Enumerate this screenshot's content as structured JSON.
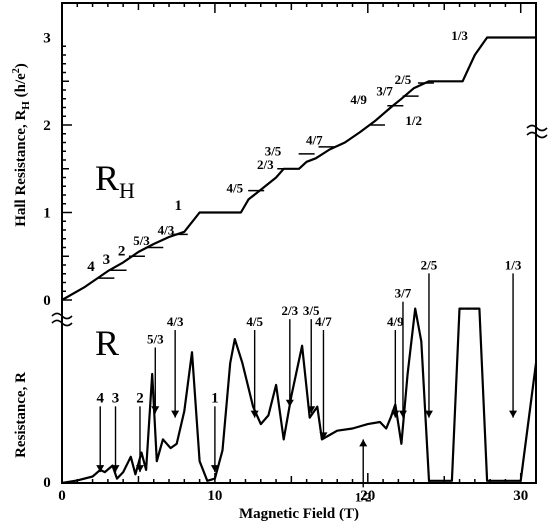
{
  "chart_data": {
    "type": "line",
    "xlabel": "Magnetic Field (T)",
    "ylabel_hall": "Hall Resistance, R",
    "ylabel_hall_sub": "H",
    "ylabel_hall_unit_open": " (h/e",
    "ylabel_hall_unit_sup": "2",
    "ylabel_hall_unit_close": ")",
    "ylabel_r": "Resistance, R",
    "xlim": [
      0,
      31
    ],
    "ylim_hall": [
      0,
      3.2
    ],
    "x_ticks": [
      "0",
      "10",
      "20",
      "30"
    ],
    "y_ticks_hall": [
      "0",
      "1",
      "2",
      "3"
    ],
    "y_zero_r": "0",
    "label_RH_main": "R",
    "label_RH_sub": "H",
    "label_R": "R",
    "series": [
      {
        "name": "R_H",
        "points": [
          [
            0,
            0
          ],
          [
            1.5,
            0.15
          ],
          [
            3,
            0.33
          ],
          [
            4,
            0.43
          ],
          [
            5,
            0.55
          ],
          [
            6,
            0.64
          ],
          [
            7,
            0.72
          ],
          [
            8,
            0.78
          ],
          [
            9,
            1.0
          ],
          [
            11.7,
            1.0
          ],
          [
            12.2,
            1.15
          ],
          [
            13,
            1.26
          ],
          [
            14,
            1.4
          ],
          [
            14.5,
            1.5
          ],
          [
            15.5,
            1.5
          ],
          [
            16,
            1.58
          ],
          [
            16.6,
            1.62
          ],
          [
            17.5,
            1.72
          ],
          [
            18.5,
            1.8
          ],
          [
            19.5,
            1.92
          ],
          [
            20.5,
            2.05
          ],
          [
            21.5,
            2.2
          ],
          [
            22.2,
            2.3
          ],
          [
            23,
            2.42
          ],
          [
            24,
            2.5
          ],
          [
            26.2,
            2.5
          ],
          [
            27,
            2.8
          ],
          [
            27.8,
            3.0
          ],
          [
            31,
            3.0
          ]
        ]
      },
      {
        "name": "R",
        "points": [
          [
            0,
            0
          ],
          [
            1,
            0.012
          ],
          [
            2,
            0.03
          ],
          [
            2.5,
            0.06
          ],
          [
            2.8,
            0.05
          ],
          [
            3.3,
            0.08
          ],
          [
            3.6,
            0.02
          ],
          [
            4,
            0.05
          ],
          [
            4.5,
            0.12
          ],
          [
            4.8,
            0.04
          ],
          [
            5.2,
            0.14
          ],
          [
            5.5,
            0.06
          ],
          [
            5.9,
            0.5
          ],
          [
            6.2,
            0.1
          ],
          [
            6.6,
            0.2
          ],
          [
            7.1,
            0.16
          ],
          [
            7.5,
            0.18
          ],
          [
            8,
            0.33
          ],
          [
            8.5,
            0.6
          ],
          [
            9,
            0.1
          ],
          [
            9.5,
            0.01
          ],
          [
            10,
            0.02
          ],
          [
            10.5,
            0.15
          ],
          [
            11,
            0.55
          ],
          [
            11.3,
            0.66
          ],
          [
            11.8,
            0.55
          ],
          [
            12.5,
            0.35
          ],
          [
            13,
            0.27
          ],
          [
            13.5,
            0.31
          ],
          [
            14,
            0.45
          ],
          [
            14.5,
            0.2
          ],
          [
            15,
            0.4
          ],
          [
            15.7,
            0.63
          ],
          [
            16.2,
            0.3
          ],
          [
            16.7,
            0.35
          ],
          [
            17,
            0.2
          ],
          [
            17.5,
            0.22
          ],
          [
            18,
            0.24
          ],
          [
            19,
            0.25
          ],
          [
            20,
            0.27
          ],
          [
            20.8,
            0.28
          ],
          [
            21.2,
            0.25
          ],
          [
            21.5,
            0.3
          ],
          [
            21.8,
            0.36
          ],
          [
            22.2,
            0.18
          ],
          [
            22.6,
            0.5
          ],
          [
            23.1,
            0.8
          ],
          [
            23.5,
            0.65
          ],
          [
            24,
            0.01
          ],
          [
            25.5,
            0.01
          ],
          [
            26,
            0.8
          ],
          [
            27.3,
            0.8
          ],
          [
            27.8,
            0.01
          ],
          [
            30,
            0.01
          ],
          [
            31,
            0.55
          ]
        ]
      }
    ],
    "hall_plateau_labels": [
      {
        "text": "4",
        "x": 1.9,
        "y": 0.33
      },
      {
        "text": "3",
        "x": 2.9,
        "y": 0.41
      },
      {
        "text": "2",
        "x": 3.9,
        "y": 0.51
      },
      {
        "text": "5/3",
        "x": 5.2,
        "y": 0.63
      },
      {
        "text": "4/3",
        "x": 6.8,
        "y": 0.75
      },
      {
        "text": "1",
        "x": 7.6,
        "y": 1.03
      },
      {
        "text": "4/5",
        "x": 11.3,
        "y": 1.23
      },
      {
        "text": "2/3",
        "x": 13.3,
        "y": 1.5
      },
      {
        "text": "3/5",
        "x": 13.8,
        "y": 1.65
      },
      {
        "text": "4/7",
        "x": 16.5,
        "y": 1.78
      },
      {
        "text": "4/9",
        "x": 19.4,
        "y": 2.24
      },
      {
        "text": "3/7",
        "x": 21.1,
        "y": 2.34
      },
      {
        "text": "2/5",
        "x": 22.3,
        "y": 2.47
      },
      {
        "text": "1/2",
        "x": 23.0,
        "y": 2.0
      },
      {
        "text": "1/3",
        "x": 26.0,
        "y": 2.97
      }
    ],
    "hall_dashes": [
      {
        "x": 2.9,
        "y": 0.25
      },
      {
        "x": 3.7,
        "y": 0.34
      },
      {
        "x": 4.9,
        "y": 0.5
      },
      {
        "x": 6.1,
        "y": 0.6
      },
      {
        "x": 7.7,
        "y": 0.75
      },
      {
        "x": 12.7,
        "y": 1.25
      },
      {
        "x": 14.6,
        "y": 1.5
      },
      {
        "x": 16.0,
        "y": 1.67
      },
      {
        "x": 17.3,
        "y": 1.75
      },
      {
        "x": 20.6,
        "y": 2.0
      },
      {
        "x": 21.8,
        "y": 2.22
      },
      {
        "x": 22.8,
        "y": 2.33
      },
      {
        "x": 23.8,
        "y": 2.48
      }
    ],
    "r_arrows": [
      {
        "text": "4",
        "x": 2.5,
        "label_y": 0.37,
        "tip": 0.05,
        "dir": "down"
      },
      {
        "text": "3",
        "x": 3.5,
        "label_y": 0.37,
        "tip": 0.05,
        "dir": "down"
      },
      {
        "text": "2",
        "x": 5.1,
        "label_y": 0.37,
        "tip": 0.05,
        "dir": "down"
      },
      {
        "text": "5/3",
        "x": 6.1,
        "label_y": 0.64,
        "tip": 0.32,
        "dir": "down"
      },
      {
        "text": "4/3",
        "x": 7.4,
        "label_y": 0.72,
        "tip": 0.3,
        "dir": "down"
      },
      {
        "text": "1",
        "x": 10.0,
        "label_y": 0.37,
        "tip": 0.05,
        "dir": "down"
      },
      {
        "text": "4/5",
        "x": 12.6,
        "label_y": 0.72,
        "tip": 0.3,
        "dir": "down"
      },
      {
        "text": "2/3",
        "x": 14.9,
        "label_y": 0.77,
        "tip": 0.35,
        "dir": "down"
      },
      {
        "text": "3/5",
        "x": 16.3,
        "label_y": 0.77,
        "tip": 0.32,
        "dir": "down"
      },
      {
        "text": "4/7",
        "x": 17.1,
        "label_y": 0.72,
        "tip": 0.2,
        "dir": "down"
      },
      {
        "text": "4/9",
        "x": 21.8,
        "label_y": 0.72,
        "tip": 0.3,
        "dir": "down"
      },
      {
        "text": "3/7",
        "x": 22.3,
        "label_y": 0.85,
        "tip": 0.3,
        "dir": "down"
      },
      {
        "text": "2/5",
        "x": 24.0,
        "label_y": 0.98,
        "tip": 0.3,
        "dir": "down"
      },
      {
        "text": "1/3",
        "x": 29.5,
        "label_y": 0.98,
        "tip": 0.3,
        "dir": "down"
      },
      {
        "text": "1/2",
        "x": 19.7,
        "label_y": -0.02,
        "tip": 0.2,
        "dir": "up"
      }
    ]
  }
}
